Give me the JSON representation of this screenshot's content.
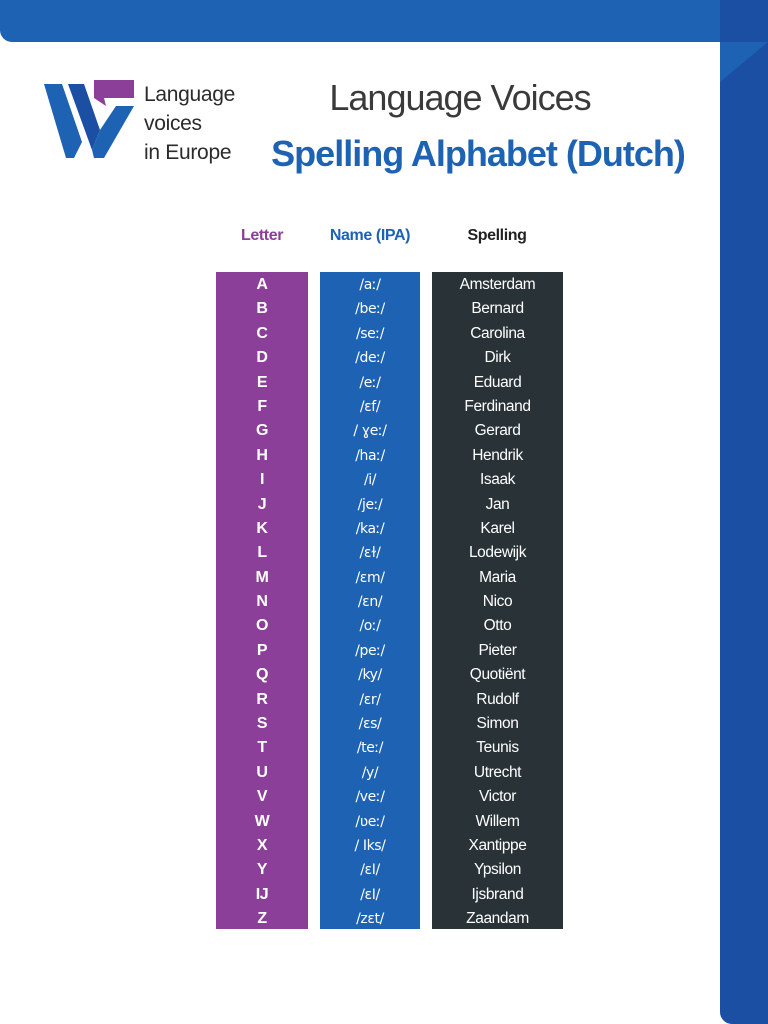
{
  "colors": {
    "brand_blue": "#1d62b3",
    "dark_blue": "#1a4fa3",
    "purple": "#8b3f98",
    "dark": "#283237"
  },
  "logo": {
    "lines": [
      "Language",
      "voices",
      "in Europe"
    ],
    "icon": "lve-logo-icon"
  },
  "title": "Language Voices",
  "subtitle": "Spelling Alphabet (Dutch)",
  "headers": {
    "letter": "Letter",
    "name": "Name (IPA)",
    "spelling": "Spelling"
  },
  "rows": [
    {
      "letter": "A",
      "ipa": "/aː/",
      "spelling": "Amsterdam"
    },
    {
      "letter": "B",
      "ipa": "/beː/",
      "spelling": "Bernard"
    },
    {
      "letter": "C",
      "ipa": "/seː/",
      "spelling": "Carolina"
    },
    {
      "letter": "D",
      "ipa": "/deː/",
      "spelling": "Dirk"
    },
    {
      "letter": "E",
      "ipa": "/eː/",
      "spelling": "Eduard"
    },
    {
      "letter": "F",
      "ipa": "/ɛf/",
      "spelling": "Ferdinand"
    },
    {
      "letter": "G",
      "ipa": "/ ɣeː/",
      "spelling": "Gerard"
    },
    {
      "letter": "H",
      "ipa": "/haː/",
      "spelling": "Hendrik"
    },
    {
      "letter": "I",
      "ipa": "/i/",
      "spelling": "Isaak"
    },
    {
      "letter": "J",
      "ipa": "/jeː/",
      "spelling": "Jan"
    },
    {
      "letter": "K",
      "ipa": "/kaː/",
      "spelling": "Karel"
    },
    {
      "letter": "L",
      "ipa": "/ɛɫ/",
      "spelling": "Lodewijk"
    },
    {
      "letter": "M",
      "ipa": "/ɛm/",
      "spelling": "Maria"
    },
    {
      "letter": "N",
      "ipa": "/ɛn/",
      "spelling": "Nico"
    },
    {
      "letter": "O",
      "ipa": "/oː/",
      "spelling": "Otto"
    },
    {
      "letter": "P",
      "ipa": "/peː/",
      "spelling": "Pieter"
    },
    {
      "letter": "Q",
      "ipa": "/ky/",
      "spelling": "Quotiënt"
    },
    {
      "letter": "R",
      "ipa": "/ɛr/",
      "spelling": "Rudolf"
    },
    {
      "letter": "S",
      "ipa": "/ɛs/",
      "spelling": "Simon"
    },
    {
      "letter": "T",
      "ipa": "/teː/",
      "spelling": "Teunis"
    },
    {
      "letter": "U",
      "ipa": "/y/",
      "spelling": "Utrecht"
    },
    {
      "letter": "V",
      "ipa": "/veː/",
      "spelling": "Victor"
    },
    {
      "letter": "W",
      "ipa": "/ʋeː/",
      "spelling": "Willem"
    },
    {
      "letter": "X",
      "ipa": "/ Iks/",
      "spelling": "Xantippe"
    },
    {
      "letter": "Y",
      "ipa": "/ɛI/",
      "spelling": "Ypsilon"
    },
    {
      "letter": "IJ",
      "ipa": "/ɛI/",
      "spelling": "Ijsbrand"
    },
    {
      "letter": "Z",
      "ipa": "/zɛt/",
      "spelling": "Zaandam"
    }
  ]
}
